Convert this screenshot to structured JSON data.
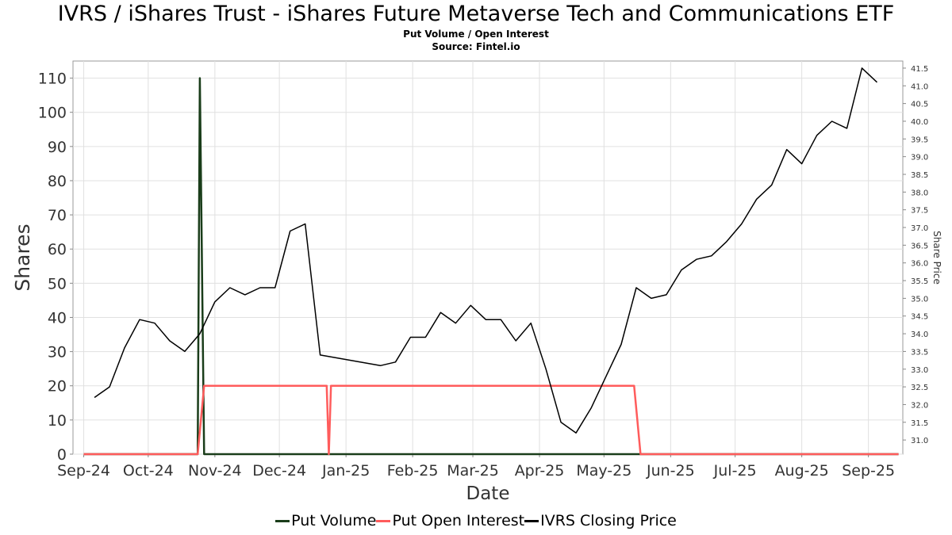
{
  "chart_data": {
    "type": "line",
    "title": "IVRS / iShares Trust - iShares Future Metaverse Tech and Communications ETF",
    "subtitle_lines": [
      "Put Volume / Open Interest",
      "Source: Fintel.io"
    ],
    "xlabel": "Date",
    "ylabel": "Shares",
    "y2label": "Share Price",
    "x_ticks": [
      "Sep-24",
      "Oct-24",
      "Nov-24",
      "Dec-24",
      "Jan-25",
      "Feb-25",
      "Mar-25",
      "Apr-25",
      "May-25",
      "Jun-25",
      "Jul-25",
      "Aug-25",
      "Sep-25"
    ],
    "x_tick_dates": [
      "2024-09-01",
      "2024-10-01",
      "2024-11-01",
      "2024-12-01",
      "2025-01-01",
      "2025-02-01",
      "2025-03-01",
      "2025-04-01",
      "2025-05-01",
      "2025-06-01",
      "2025-07-01",
      "2025-08-01",
      "2025-09-01"
    ],
    "xlim": [
      "2024-08-27",
      "2025-09-17"
    ],
    "ylim": [
      0,
      115
    ],
    "y_ticks": [
      0,
      10,
      20,
      30,
      40,
      50,
      60,
      70,
      80,
      90,
      100,
      110
    ],
    "y2lim": [
      30.6,
      41.7
    ],
    "y2_ticks": [
      31.0,
      31.5,
      32.0,
      32.5,
      33.0,
      33.5,
      34.0,
      34.5,
      35.0,
      35.5,
      36.0,
      36.5,
      37.0,
      37.5,
      38.0,
      38.5,
      39.0,
      39.5,
      40.0,
      40.5,
      41.0,
      41.5
    ],
    "y2_tick_labels": [
      "31.0",
      "31.5",
      "32.0",
      "32.5",
      "33.0",
      "33.5",
      "34.0",
      "34.5",
      "35.0",
      "35.5",
      "36.0",
      "36.5",
      "37.0",
      "37.5",
      "38.0",
      "38.5",
      "39.0",
      "39.5",
      "40.0",
      "40.5",
      "41.0",
      "41.5"
    ],
    "grid": true,
    "legend_position": "bottom",
    "series": [
      {
        "name": "Put Volume",
        "color": "#1a3d1a",
        "axis": "left",
        "points": [
          [
            "2024-09-01",
            0
          ],
          [
            "2024-10-24",
            0
          ],
          [
            "2024-10-25",
            110
          ],
          [
            "2024-10-27",
            0
          ],
          [
            "2025-09-15",
            0
          ]
        ]
      },
      {
        "name": "Put Open Interest",
        "color": "#ff5c5c",
        "axis": "left",
        "points": [
          [
            "2024-09-01",
            0
          ],
          [
            "2024-10-24",
            0
          ],
          [
            "2024-10-27",
            20
          ],
          [
            "2024-12-23",
            20
          ],
          [
            "2024-12-24",
            0
          ],
          [
            "2024-12-25",
            20
          ],
          [
            "2025-05-15",
            20
          ],
          [
            "2025-05-18",
            0
          ],
          [
            "2025-09-15",
            0
          ]
        ]
      },
      {
        "name": "IVRS Closing Price",
        "color": "#000000",
        "axis": "right",
        "points": [
          [
            "2024-09-06",
            32.2
          ],
          [
            "2024-09-13",
            32.5
          ],
          [
            "2024-09-20",
            33.6
          ],
          [
            "2024-09-27",
            34.4
          ],
          [
            "2024-10-04",
            34.3
          ],
          [
            "2024-10-11",
            33.8
          ],
          [
            "2024-10-18",
            33.5
          ],
          [
            "2024-10-25",
            34.0
          ],
          [
            "2024-11-01",
            34.9
          ],
          [
            "2024-11-08",
            35.3
          ],
          [
            "2024-11-15",
            35.1
          ],
          [
            "2024-11-22",
            35.3
          ],
          [
            "2024-11-29",
            35.3
          ],
          [
            "2024-12-06",
            36.9
          ],
          [
            "2024-12-13",
            37.1
          ],
          [
            "2024-12-20",
            33.4
          ],
          [
            "2025-01-17",
            33.1
          ],
          [
            "2025-01-24",
            33.2
          ],
          [
            "2025-01-31",
            33.9
          ],
          [
            "2025-02-07",
            33.9
          ],
          [
            "2025-02-14",
            34.6
          ],
          [
            "2025-02-21",
            34.3
          ],
          [
            "2025-02-28",
            34.8
          ],
          [
            "2025-03-07",
            34.4
          ],
          [
            "2025-03-14",
            34.4
          ],
          [
            "2025-03-21",
            33.8
          ],
          [
            "2025-03-28",
            34.3
          ],
          [
            "2025-04-04",
            33.0
          ],
          [
            "2025-04-11",
            31.5
          ],
          [
            "2025-04-18",
            31.2
          ],
          [
            "2025-04-25",
            31.9
          ],
          [
            "2025-05-02",
            32.8
          ],
          [
            "2025-05-09",
            33.7
          ],
          [
            "2025-05-16",
            35.3
          ],
          [
            "2025-05-23",
            35.0
          ],
          [
            "2025-05-30",
            35.1
          ],
          [
            "2025-06-06",
            35.8
          ],
          [
            "2025-06-13",
            36.1
          ],
          [
            "2025-06-20",
            36.2
          ],
          [
            "2025-06-27",
            36.6
          ],
          [
            "2025-07-04",
            37.1
          ],
          [
            "2025-07-11",
            37.8
          ],
          [
            "2025-07-18",
            38.2
          ],
          [
            "2025-07-25",
            39.2
          ],
          [
            "2025-08-01",
            38.8
          ],
          [
            "2025-08-08",
            39.6
          ],
          [
            "2025-08-15",
            40.0
          ],
          [
            "2025-08-22",
            39.8
          ],
          [
            "2025-08-29",
            41.5
          ],
          [
            "2025-09-05",
            41.1
          ]
        ]
      }
    ]
  }
}
